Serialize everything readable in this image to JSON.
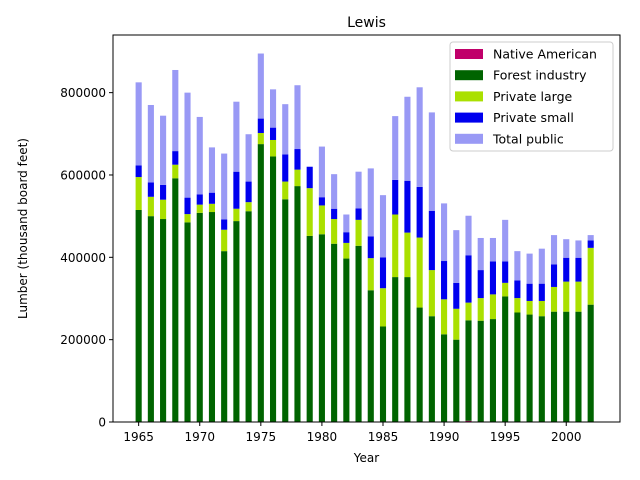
{
  "chart_data": {
    "type": "bar",
    "stacked": true,
    "title": "Lewis",
    "xlabel": "Year",
    "ylabel": "Lumber (thousand board feet)",
    "xlim": [
      1962.9,
      2004.4
    ],
    "ylim": [
      0,
      940000
    ],
    "xticks": [
      1965,
      1970,
      1975,
      1980,
      1985,
      1990,
      1995,
      2000
    ],
    "yticks": [
      0,
      200000,
      400000,
      600000,
      800000
    ],
    "legend_position": "top-right",
    "years": [
      1965,
      1966,
      1967,
      1968,
      1969,
      1970,
      1971,
      1972,
      1973,
      1974,
      1975,
      1976,
      1977,
      1978,
      1979,
      1980,
      1981,
      1982,
      1983,
      1984,
      1985,
      1986,
      1987,
      1988,
      1989,
      1990,
      1991,
      1992,
      1993,
      1994,
      1995,
      1996,
      1997,
      1998,
      1999,
      2000,
      2001,
      2002
    ],
    "series": [
      {
        "name": "Native American",
        "color": "#c0006a",
        "values": [
          0,
          0,
          0,
          0,
          0,
          0,
          0,
          0,
          0,
          0,
          0,
          0,
          0,
          0,
          0,
          0,
          0,
          0,
          0,
          0,
          0,
          0,
          0,
          0,
          0,
          0,
          0,
          3000,
          0,
          0,
          0,
          0,
          0,
          0,
          0,
          0,
          0,
          0
        ]
      },
      {
        "name": "Forest industry",
        "color": "#006400",
        "values": [
          515000,
          500000,
          493000,
          592000,
          485000,
          508000,
          510000,
          415000,
          488000,
          512000,
          675000,
          645000,
          541000,
          573000,
          452000,
          456000,
          433000,
          397000,
          428000,
          320000,
          232000,
          352000,
          352000,
          278000,
          257000,
          213000,
          200000,
          244000,
          246000,
          250000,
          305000,
          266000,
          261000,
          257000,
          268000,
          268000,
          268000,
          285000
        ]
      },
      {
        "name": "Private large",
        "color": "#aae000",
        "values": [
          80000,
          47000,
          47000,
          33000,
          20000,
          20000,
          20000,
          52000,
          30000,
          22000,
          27000,
          40000,
          43000,
          40000,
          116000,
          70000,
          60000,
          38000,
          63000,
          78000,
          93000,
          152000,
          108000,
          170000,
          112000,
          85000,
          75000,
          43000,
          55000,
          60000,
          33000,
          35000,
          33000,
          37000,
          60000,
          73000,
          73000,
          138000
        ]
      },
      {
        "name": "Private small",
        "color": "#0000ee",
        "values": [
          28000,
          35000,
          36000,
          33000,
          40000,
          25000,
          27000,
          25000,
          90000,
          50000,
          35000,
          30000,
          66000,
          50000,
          52000,
          20000,
          25000,
          26000,
          28000,
          53000,
          75000,
          84000,
          126000,
          123000,
          144000,
          93000,
          63000,
          115000,
          68000,
          80000,
          52000,
          43000,
          42000,
          42000,
          55000,
          58000,
          58000,
          18000
        ]
      },
      {
        "name": "Total public",
        "color": "#9999f5",
        "values": [
          202000,
          188000,
          168000,
          197000,
          255000,
          188000,
          110000,
          160000,
          170000,
          115000,
          158000,
          93000,
          122000,
          155000,
          0,
          123000,
          84000,
          43000,
          89000,
          165000,
          151000,
          155000,
          204000,
          242000,
          239000,
          140000,
          128000,
          96000,
          78000,
          57000,
          101000,
          71000,
          73000,
          85000,
          71000,
          45000,
          42000,
          13000
        ]
      }
    ]
  }
}
